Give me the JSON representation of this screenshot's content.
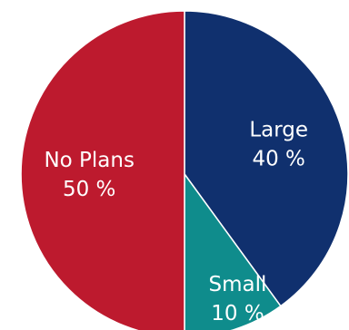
{
  "chart_data": {
    "type": "pie",
    "title": "",
    "start_angle_deg": 0,
    "direction": "clockwise",
    "slice_order": [
      "Large",
      "Small",
      "No Plans"
    ],
    "slices": [
      {
        "label": "Large",
        "value": 40,
        "value_text": "40 %",
        "color": "#10306e"
      },
      {
        "label": "Small",
        "value": 10,
        "value_text": "10 %",
        "color": "#0f8c8c"
      },
      {
        "label": "No Plans",
        "value": 50,
        "value_text": "50 %",
        "color": "#bd1a2e"
      }
    ],
    "slice_border_color": "#ffffff"
  }
}
